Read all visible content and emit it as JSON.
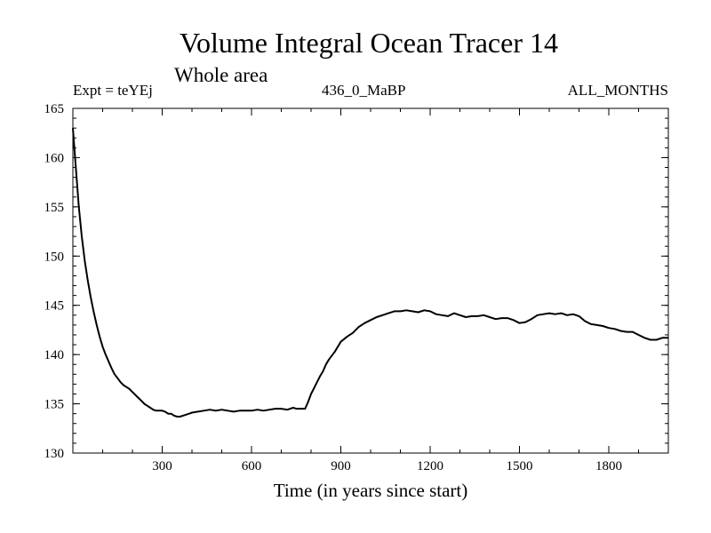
{
  "chart_data": {
    "type": "line",
    "title": "Volume Integral Ocean Tracer 14",
    "subtitle": "Whole area",
    "annotations": {
      "left": "Expt = teYEj",
      "center": "436_0_MaBP",
      "right": "ALL_MONTHS"
    },
    "xlabel": "Time (in years since start)",
    "ylabel": "",
    "xlim": [
      0,
      2000
    ],
    "ylim": [
      130,
      165
    ],
    "xticks": [
      300,
      600,
      900,
      1200,
      1500,
      1800
    ],
    "xminor_step": 100,
    "yticks": [
      130,
      135,
      140,
      145,
      150,
      155,
      160,
      165
    ],
    "yminor_step": 1,
    "grid": false,
    "series": [
      {
        "name": "Ocean Tracer 14",
        "color": "#000000",
        "x": [
          0,
          10,
          20,
          30,
          40,
          50,
          60,
          70,
          80,
          90,
          100,
          110,
          120,
          130,
          140,
          150,
          160,
          170,
          180,
          190,
          200,
          210,
          220,
          230,
          240,
          250,
          260,
          270,
          280,
          290,
          300,
          310,
          320,
          330,
          340,
          350,
          360,
          370,
          380,
          390,
          400,
          420,
          440,
          460,
          480,
          500,
          520,
          540,
          560,
          580,
          600,
          620,
          640,
          660,
          680,
          700,
          720,
          740,
          750,
          760,
          770,
          780,
          790,
          800,
          810,
          820,
          830,
          840,
          850,
          860,
          870,
          880,
          890,
          900,
          920,
          940,
          960,
          980,
          1000,
          1020,
          1040,
          1060,
          1080,
          1100,
          1120,
          1140,
          1160,
          1180,
          1200,
          1220,
          1240,
          1260,
          1280,
          1300,
          1320,
          1340,
          1360,
          1380,
          1400,
          1420,
          1440,
          1460,
          1480,
          1500,
          1520,
          1540,
          1560,
          1580,
          1600,
          1620,
          1640,
          1660,
          1680,
          1700,
          1720,
          1740,
          1760,
          1780,
          1800,
          1820,
          1840,
          1860,
          1880,
          1900,
          1920,
          1940,
          1960,
          1980,
          2000
        ],
        "values": [
          163.0,
          159.0,
          155.0,
          152.0,
          149.5,
          147.5,
          145.8,
          144.3,
          143.0,
          141.8,
          140.8,
          140.0,
          139.3,
          138.6,
          138.0,
          137.6,
          137.2,
          136.9,
          136.7,
          136.5,
          136.2,
          135.9,
          135.6,
          135.3,
          135.0,
          134.8,
          134.6,
          134.4,
          134.3,
          134.3,
          134.3,
          134.2,
          134.0,
          134.0,
          133.8,
          133.7,
          133.7,
          133.8,
          133.9,
          134.0,
          134.1,
          134.2,
          134.3,
          134.4,
          134.3,
          134.4,
          134.3,
          134.2,
          134.3,
          134.3,
          134.3,
          134.4,
          134.3,
          134.4,
          134.5,
          134.5,
          134.4,
          134.6,
          134.5,
          134.5,
          134.5,
          134.5,
          135.2,
          136.0,
          136.6,
          137.2,
          137.8,
          138.3,
          139.0,
          139.5,
          139.9,
          140.3,
          140.8,
          141.3,
          141.8,
          142.2,
          142.8,
          143.2,
          143.5,
          143.8,
          144.0,
          144.2,
          144.4,
          144.4,
          144.5,
          144.4,
          144.3,
          144.5,
          144.4,
          144.1,
          144.0,
          143.9,
          144.2,
          144.0,
          143.8,
          143.9,
          143.9,
          144.0,
          143.8,
          143.6,
          143.7,
          143.7,
          143.5,
          143.2,
          143.3,
          143.6,
          144.0,
          144.1,
          144.2,
          144.1,
          144.2,
          144.0,
          144.1,
          143.9,
          143.4,
          143.1,
          143.0,
          142.9,
          142.7,
          142.6,
          142.4,
          142.3,
          142.3,
          142.0,
          141.7,
          141.5,
          141.5,
          141.7,
          141.7
        ]
      }
    ]
  }
}
